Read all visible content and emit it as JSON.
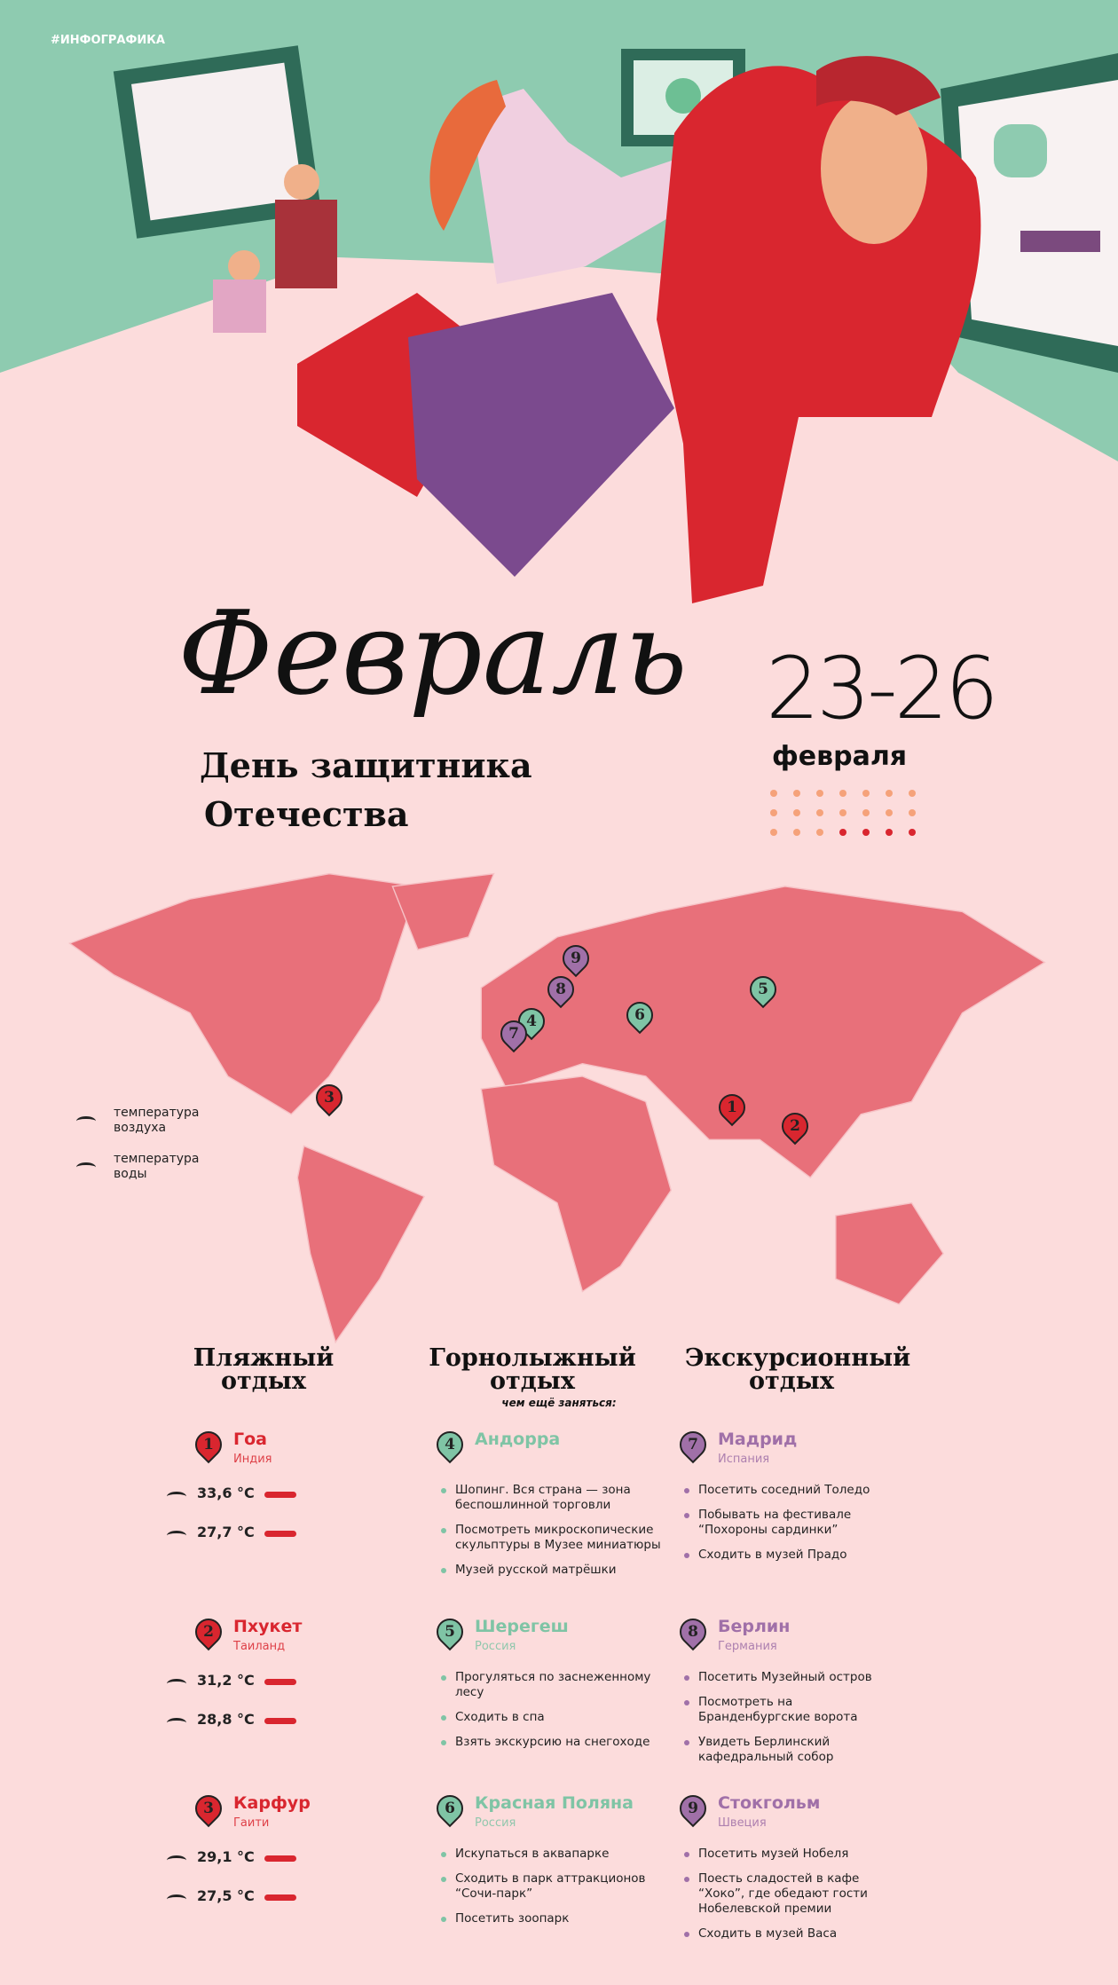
{
  "tag": "#ИНФОГРАФИКА",
  "header": {
    "month": "Февраль",
    "holiday": [
      "День защитника",
      "Отечества"
    ],
    "dates": "23-26",
    "dates_month": "февраля"
  },
  "legend": [
    {
      "label": "температура воздуха"
    },
    {
      "label": "температура воды"
    }
  ],
  "map": {
    "pins": [
      "1",
      "2",
      "3",
      "4",
      "5",
      "6",
      "7",
      "8",
      "9"
    ]
  },
  "columns": [
    {
      "title": "Пляжный отдых",
      "items": [
        {
          "pin": "1",
          "name": "Гоа",
          "country": "Индия",
          "air": "33,6 °C",
          "water": "27,7 °C"
        },
        {
          "pin": "2",
          "name": "Пхукет",
          "country": "Таиланд",
          "air": "31,2 °C",
          "water": "28,8 °C"
        },
        {
          "pin": "3",
          "name": "Карфур",
          "country": "Гаити",
          "air": "29,1 °C",
          "water": "27,5 °C"
        }
      ]
    },
    {
      "title": "Горнолыжный отдых",
      "subtitle": "чем ещё заняться:",
      "items": [
        {
          "pin": "4",
          "name": "Андорра",
          "activities": [
            "Шопинг. Вся страна — зона беспошлинной торговли",
            "Посмотреть микроскопические скульптуры в Музее миниатюры",
            "Музей русской матрёшки"
          ]
        },
        {
          "pin": "5",
          "name": "Шерегеш",
          "country": "Россия",
          "activities": [
            "Прогуляться по заснеженному лесу",
            "Сходить в спа",
            "Взять экскурсию на снегоходе"
          ]
        },
        {
          "pin": "6",
          "name": "Красная Поляна",
          "country": "Россия",
          "activities": [
            "Искупаться в аквапарке",
            "Сходить в парк аттракционов “Сочи-парк”",
            "Посетить зоопарк"
          ]
        }
      ]
    },
    {
      "title": "Экскурсионный отдых",
      "items": [
        {
          "pin": "7",
          "name": "Мадрид",
          "country": "Испания",
          "activities": [
            "Посетить соседний Толедо",
            "Побывать на фестивале “Похороны сардинки”",
            "Сходить в музей Прадо"
          ]
        },
        {
          "pin": "8",
          "name": "Берлин",
          "country": "Германия",
          "activities": [
            "Посетить Музейный остров",
            "Посмотреть на Бранденбургские ворота",
            "Увидеть Берлинский кафедральный собор"
          ]
        },
        {
          "pin": "9",
          "name": "Стокгольм",
          "country": "Швеция",
          "activities": [
            "Посетить музей Нобеля",
            "Поесть сладостей в кафе “Хоко”, где обедают гости Нобелевской премии",
            "Сходить в музей Васа"
          ]
        }
      ]
    }
  ]
}
